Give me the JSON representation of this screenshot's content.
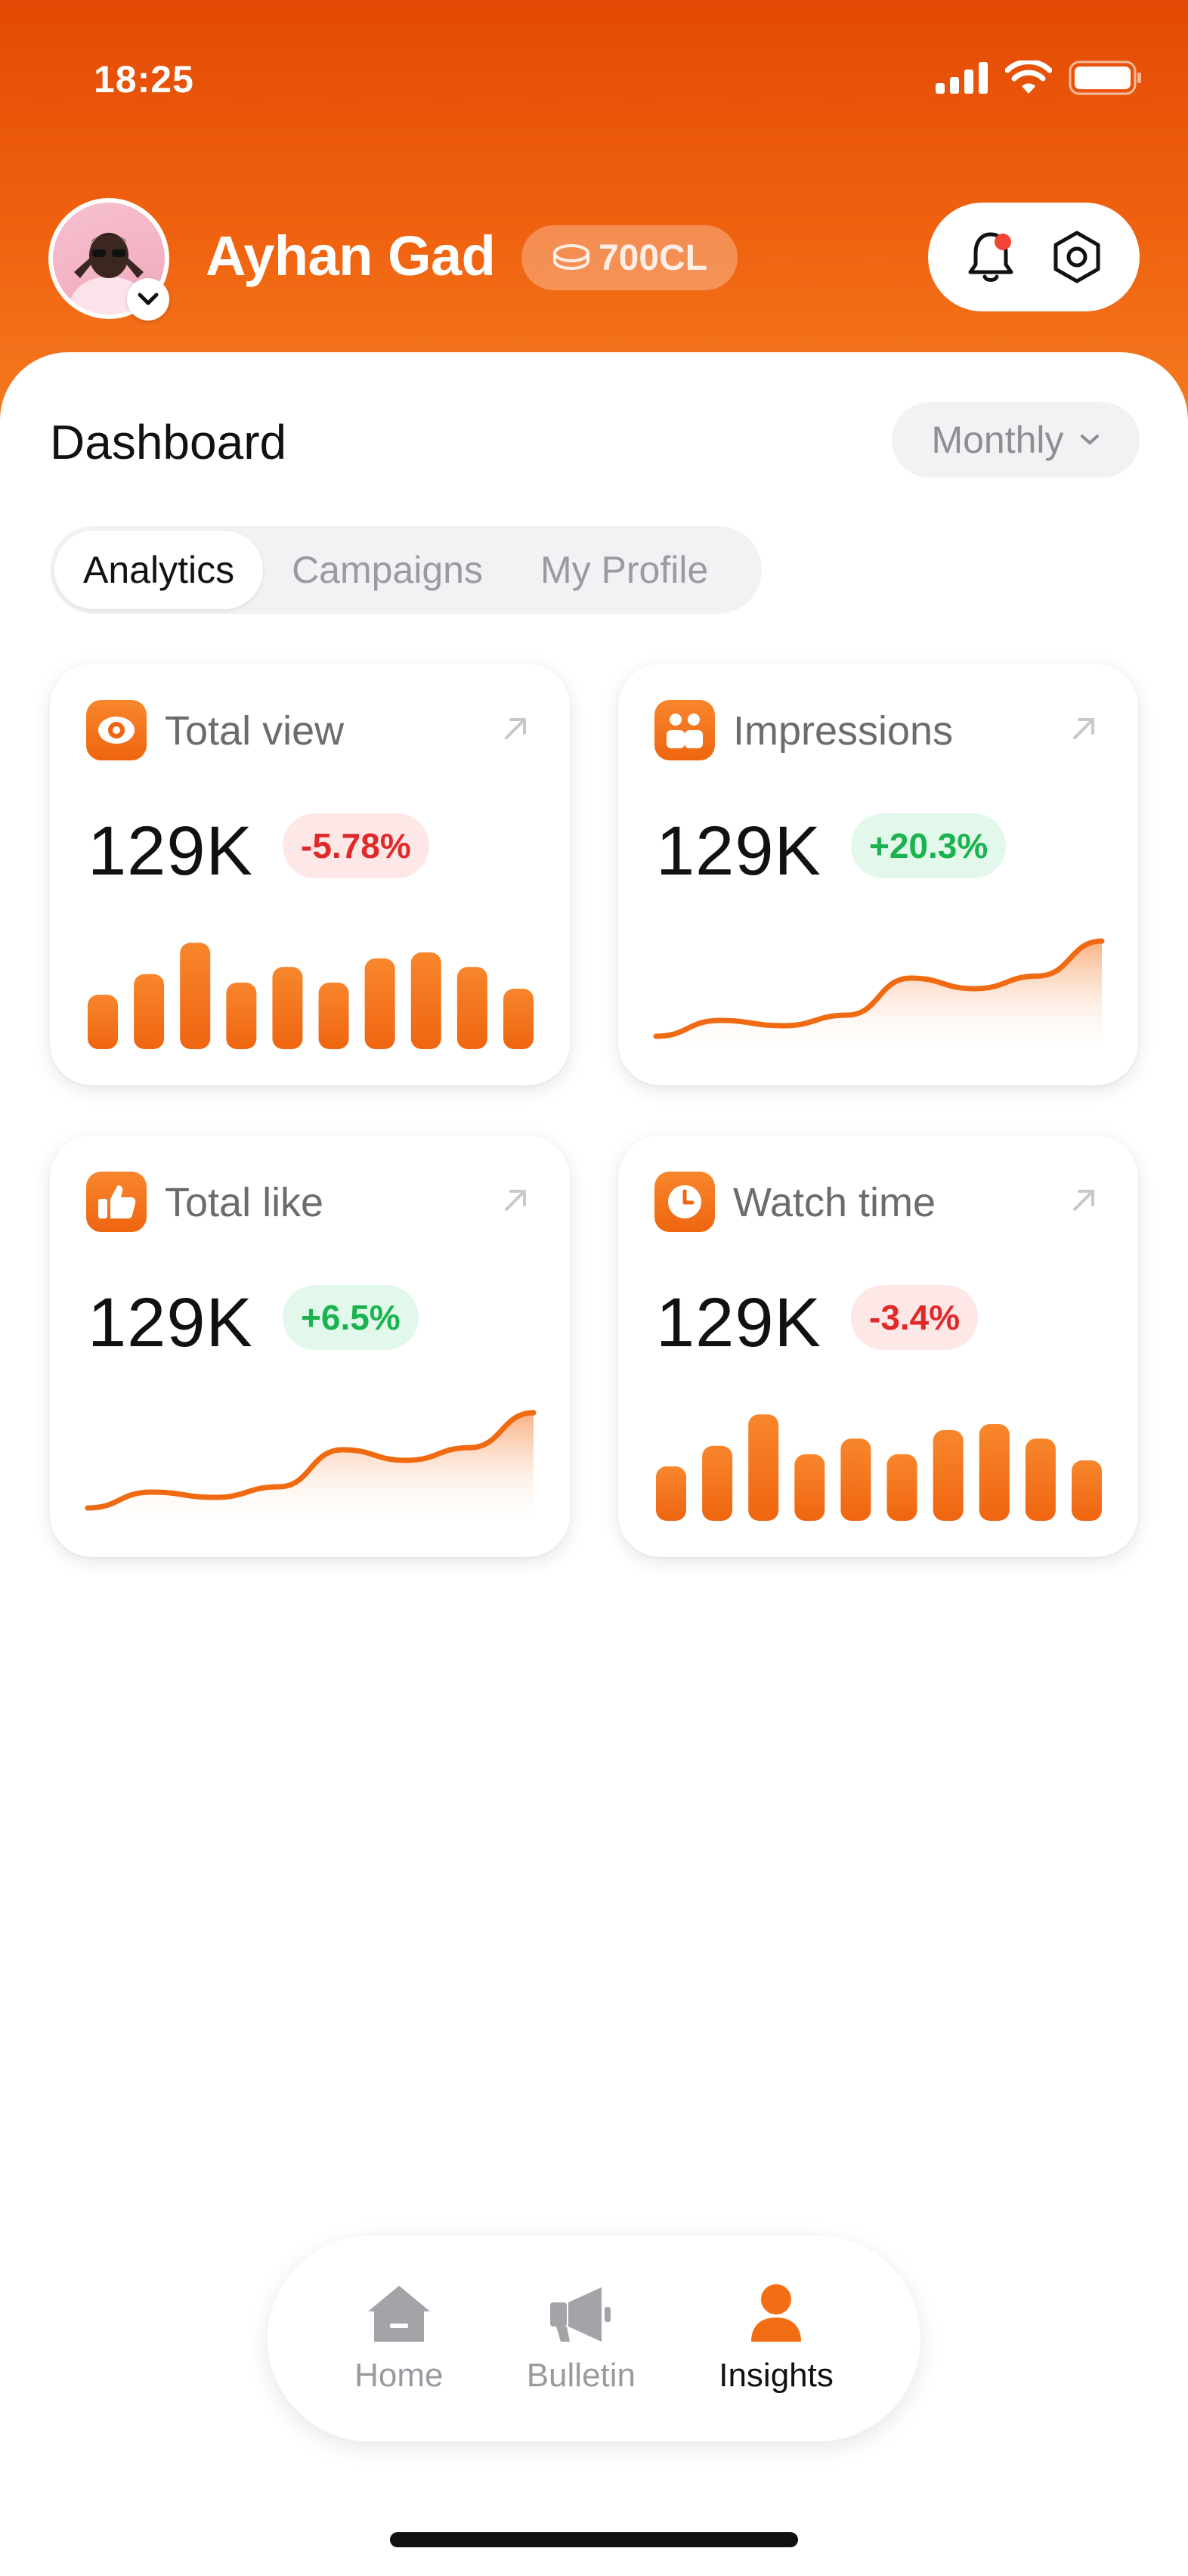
{
  "status": {
    "time": "18:25"
  },
  "header": {
    "user_name": "Ayhan Gad",
    "coins": "700CL"
  },
  "dashboard": {
    "title": "Dashboard",
    "period": "Monthly",
    "tabs": [
      {
        "label": "Analytics",
        "active": true
      },
      {
        "label": "Campaigns",
        "active": false
      },
      {
        "label": "My Profile",
        "active": false
      }
    ]
  },
  "cards": [
    {
      "title": "Total view",
      "value": "129K",
      "change": "-5.78%",
      "trend": "negative",
      "chart": "bar",
      "bars": [
        0.45,
        0.62,
        0.88,
        0.55,
        0.68,
        0.55,
        0.75,
        0.8,
        0.68,
        0.5
      ]
    },
    {
      "title": "Impressions",
      "value": "129K",
      "change": "+20.3%",
      "trend": "positive",
      "chart": "line",
      "points": [
        0.05,
        0.2,
        0.15,
        0.25,
        0.6,
        0.5,
        0.62,
        0.95
      ]
    },
    {
      "title": "Total like",
      "value": "129K",
      "change": "+6.5%",
      "trend": "positive",
      "chart": "line",
      "points": [
        0.05,
        0.2,
        0.15,
        0.25,
        0.6,
        0.5,
        0.62,
        0.95
      ]
    },
    {
      "title": "Watch time",
      "value": "129K",
      "change": "-3.4%",
      "trend": "negative",
      "chart": "bar",
      "bars": [
        0.45,
        0.62,
        0.88,
        0.55,
        0.68,
        0.55,
        0.75,
        0.8,
        0.68,
        0.5
      ]
    }
  ],
  "nav": {
    "items": [
      {
        "label": "Home",
        "icon": "home-icon",
        "active": false
      },
      {
        "label": "Bulletin",
        "icon": "megaphone-icon",
        "active": false
      },
      {
        "label": "Insights",
        "icon": "user-icon",
        "active": true
      }
    ]
  },
  "colors": {
    "accent": "#f06a12",
    "negative": "#e02a2a",
    "positive": "#19b34f"
  }
}
